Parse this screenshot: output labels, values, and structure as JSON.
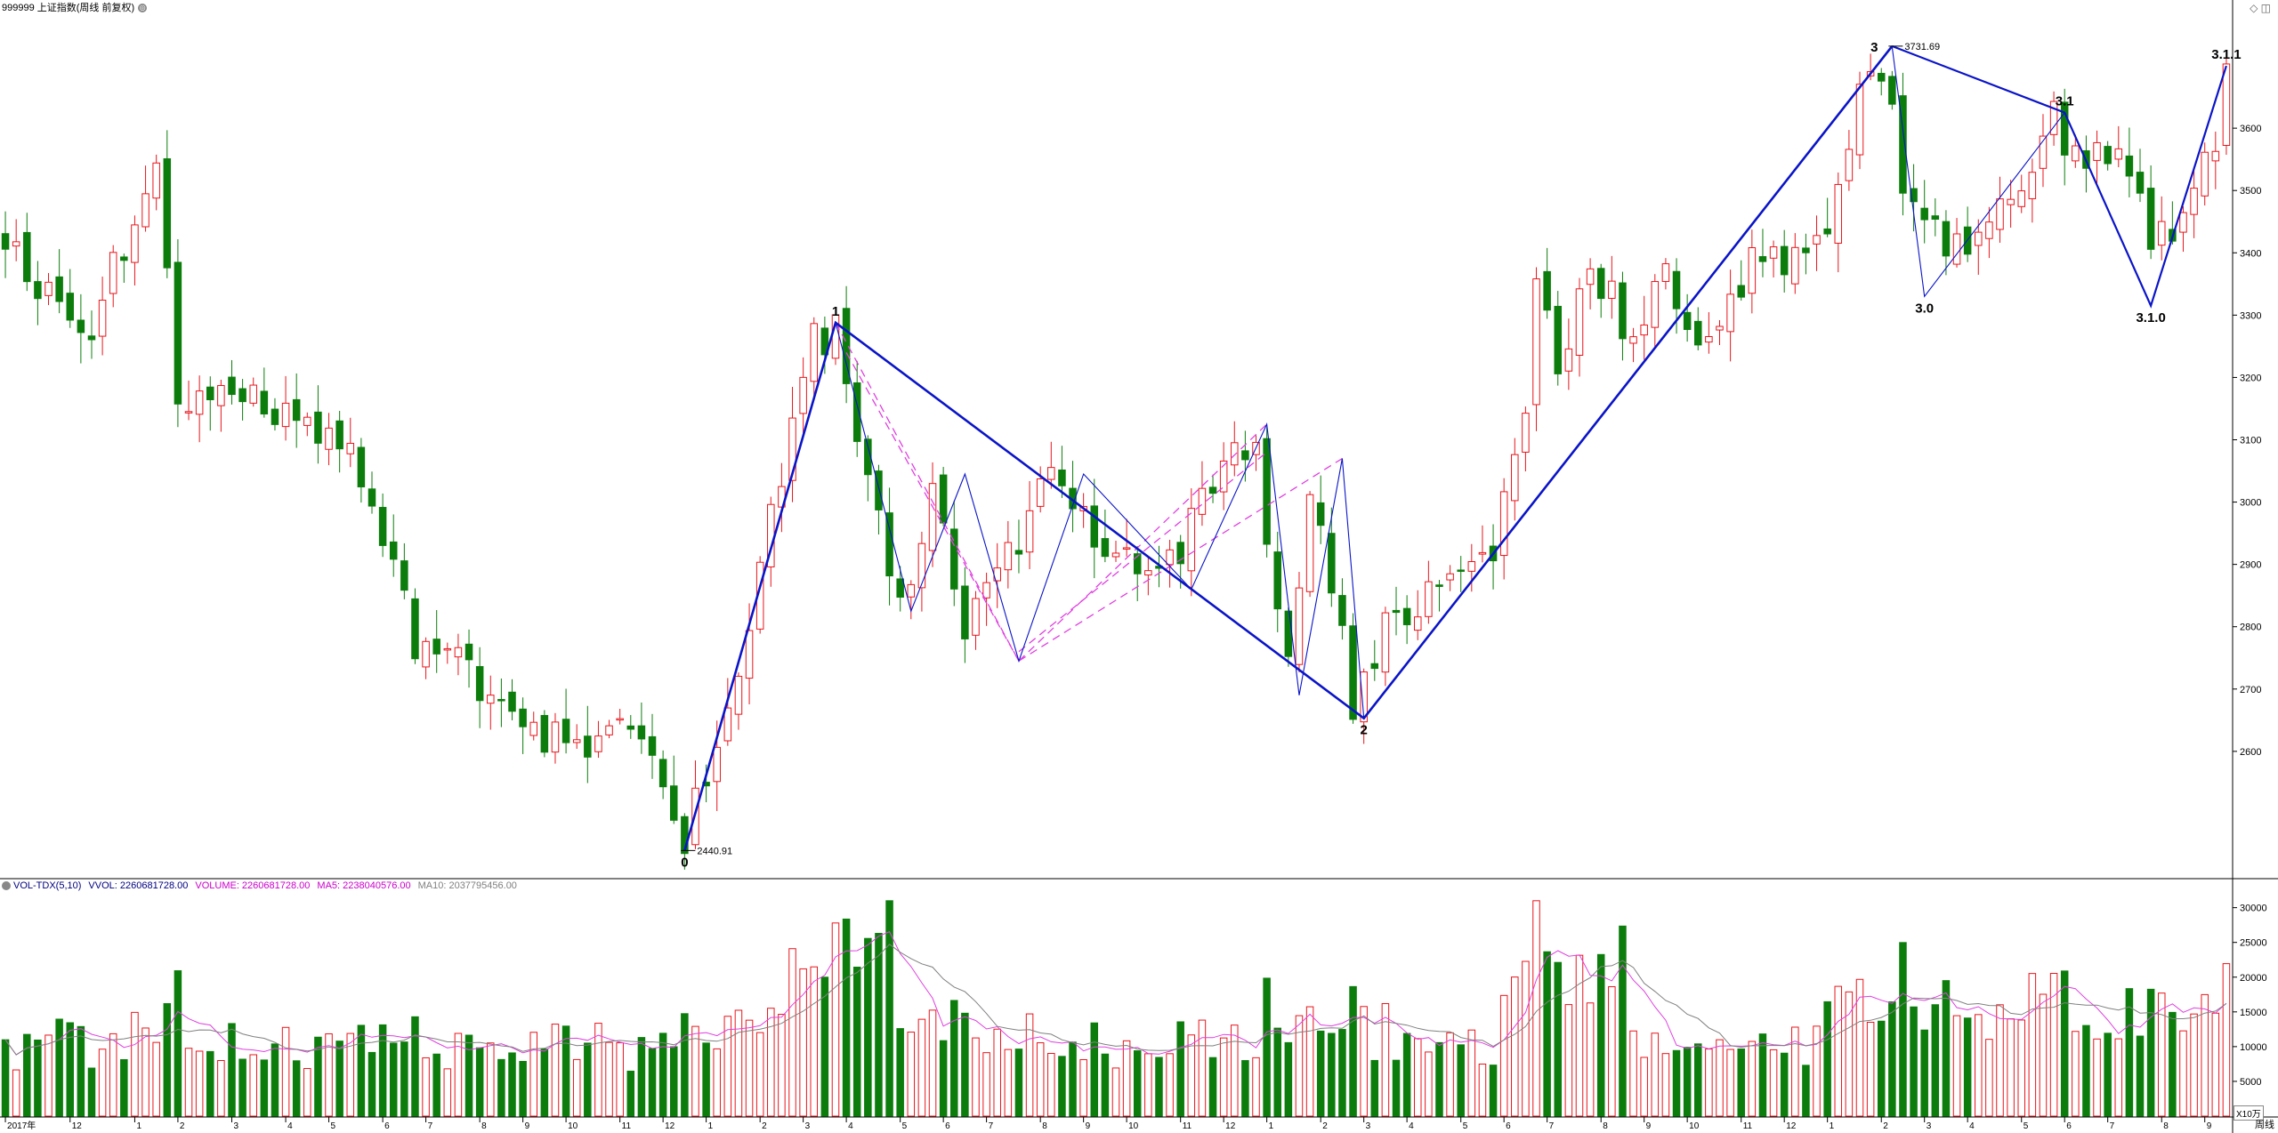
{
  "header": {
    "security": "999999 上证指数(周线 前复权)",
    "circle_glyph": "◎"
  },
  "vol_header": {
    "name": "VOL-TDX(5,10)",
    "vvol": "VVOL: 2260681728.00",
    "volume": "VOLUME: 2260681728.00",
    "ma5": "MA5: 2238040576.00",
    "ma10": "MA10: 2037795456.00"
  },
  "period_label": "周线",
  "unit_label": "X10万",
  "window_icons": "◇ ◫",
  "colors": {
    "up": "#e8161c",
    "down": "#0c7d0c",
    "wave": "#0a14c8",
    "fib": "#e040e0",
    "ma5": "#e040e0",
    "ma10": "#808080",
    "grid": "#000000"
  },
  "chart_data": {
    "type": "candlestick",
    "price_axis": {
      "min": 2400,
      "max": 3780,
      "ticks": [
        2600,
        2700,
        2800,
        2900,
        3000,
        3100,
        3200,
        3300,
        3400,
        3500,
        3600
      ]
    },
    "volume_axis": {
      "ticks": [
        5000,
        10000,
        15000,
        20000,
        25000,
        30000
      ],
      "unit": "X10万"
    },
    "time_labels": [
      {
        "bar": 0,
        "text": "2017年"
      },
      {
        "bar": 6,
        "text": "12"
      },
      {
        "bar": 12,
        "text": "1"
      },
      {
        "bar": 16,
        "text": "2"
      },
      {
        "bar": 21,
        "text": "3"
      },
      {
        "bar": 26,
        "text": "4"
      },
      {
        "bar": 30,
        "text": "5"
      },
      {
        "bar": 35,
        "text": "6"
      },
      {
        "bar": 39,
        "text": "7"
      },
      {
        "bar": 44,
        "text": "8"
      },
      {
        "bar": 48,
        "text": "9"
      },
      {
        "bar": 52,
        "text": "10"
      },
      {
        "bar": 57,
        "text": "11"
      },
      {
        "bar": 61,
        "text": "12"
      },
      {
        "bar": 65,
        "text": "1"
      },
      {
        "bar": 70,
        "text": "2"
      },
      {
        "bar": 74,
        "text": "3"
      },
      {
        "bar": 78,
        "text": "4"
      },
      {
        "bar": 83,
        "text": "5"
      },
      {
        "bar": 87,
        "text": "6"
      },
      {
        "bar": 91,
        "text": "7"
      },
      {
        "bar": 96,
        "text": "8"
      },
      {
        "bar": 100,
        "text": "9"
      },
      {
        "bar": 104,
        "text": "10"
      },
      {
        "bar": 109,
        "text": "11"
      },
      {
        "bar": 113,
        "text": "12"
      },
      {
        "bar": 117,
        "text": "1"
      },
      {
        "bar": 122,
        "text": "2"
      },
      {
        "bar": 126,
        "text": "3"
      },
      {
        "bar": 130,
        "text": "4"
      },
      {
        "bar": 135,
        "text": "5"
      },
      {
        "bar": 139,
        "text": "6"
      },
      {
        "bar": 143,
        "text": "7"
      },
      {
        "bar": 148,
        "text": "8"
      },
      {
        "bar": 152,
        "text": "9"
      },
      {
        "bar": 156,
        "text": "10"
      },
      {
        "bar": 161,
        "text": "11"
      },
      {
        "bar": 165,
        "text": "12"
      },
      {
        "bar": 169,
        "text": "1"
      },
      {
        "bar": 174,
        "text": "2"
      },
      {
        "bar": 178,
        "text": "3"
      },
      {
        "bar": 182,
        "text": "4"
      },
      {
        "bar": 187,
        "text": "5"
      },
      {
        "bar": 191,
        "text": "6"
      },
      {
        "bar": 195,
        "text": "7"
      },
      {
        "bar": 200,
        "text": "8"
      },
      {
        "bar": 204,
        "text": "9"
      }
    ],
    "anchors": [
      {
        "bar": 0,
        "close": 3410
      },
      {
        "bar": 8,
        "close": 3280
      },
      {
        "bar": 14,
        "close": 3560
      },
      {
        "bar": 16,
        "close": 3150
      },
      {
        "bar": 22,
        "close": 3190
      },
      {
        "bar": 32,
        "close": 3080
      },
      {
        "bar": 38,
        "close": 2780
      },
      {
        "bar": 46,
        "close": 2690
      },
      {
        "bar": 52,
        "close": 2600
      },
      {
        "bar": 56,
        "close": 2650
      },
      {
        "bar": 60,
        "close": 2580
      },
      {
        "bar": 63,
        "close": 2460
      },
      {
        "bar": 66,
        "close": 2600
      },
      {
        "bar": 69,
        "close": 2800
      },
      {
        "bar": 71,
        "close": 2990
      },
      {
        "bar": 75,
        "close": 3260
      },
      {
        "bar": 77,
        "close": 3280
      },
      {
        "bar": 79,
        "close": 3120
      },
      {
        "bar": 82,
        "close": 2880
      },
      {
        "bar": 84,
        "close": 2840
      },
      {
        "bar": 86,
        "close": 3030
      },
      {
        "bar": 89,
        "close": 2780
      },
      {
        "bar": 94,
        "close": 2940
      },
      {
        "bar": 97,
        "close": 3040
      },
      {
        "bar": 100,
        "close": 2960
      },
      {
        "bar": 104,
        "close": 2920
      },
      {
        "bar": 108,
        "close": 2900
      },
      {
        "bar": 111,
        "close": 3000
      },
      {
        "bar": 114,
        "close": 3100
      },
      {
        "bar": 116,
        "close": 3080
      },
      {
        "bar": 119,
        "close": 2720
      },
      {
        "bar": 121,
        "close": 3040
      },
      {
        "bar": 123,
        "close": 2870
      },
      {
        "bar": 125,
        "close": 2680
      },
      {
        "bar": 128,
        "close": 2800
      },
      {
        "bar": 133,
        "close": 2860
      },
      {
        "bar": 138,
        "close": 2920
      },
      {
        "bar": 141,
        "close": 3150
      },
      {
        "bar": 142,
        "close": 3360
      },
      {
        "bar": 144,
        "close": 3220
      },
      {
        "bar": 147,
        "close": 3380
      },
      {
        "bar": 149,
        "close": 3330
      },
      {
        "bar": 151,
        "close": 3240
      },
      {
        "bar": 154,
        "close": 3360
      },
      {
        "bar": 157,
        "close": 3260
      },
      {
        "bar": 160,
        "close": 3300
      },
      {
        "bar": 163,
        "close": 3420
      },
      {
        "bar": 166,
        "close": 3380
      },
      {
        "bar": 169,
        "close": 3460
      },
      {
        "bar": 172,
        "close": 3640
      },
      {
        "bar": 174,
        "close": 3700
      },
      {
        "bar": 176,
        "close": 3520
      },
      {
        "bar": 178,
        "close": 3460
      },
      {
        "bar": 180,
        "close": 3400
      },
      {
        "bar": 183,
        "close": 3420
      },
      {
        "bar": 186,
        "close": 3480
      },
      {
        "bar": 188,
        "close": 3560
      },
      {
        "bar": 190,
        "close": 3610
      },
      {
        "bar": 192,
        "close": 3540
      },
      {
        "bar": 195,
        "close": 3560
      },
      {
        "bar": 197,
        "close": 3540
      },
      {
        "bar": 199,
        "close": 3400
      },
      {
        "bar": 201,
        "close": 3440
      },
      {
        "bar": 203,
        "close": 3520
      },
      {
        "bar": 205,
        "close": 3580
      },
      {
        "bar": 206,
        "close": 3690
      }
    ],
    "wave_points": [
      {
        "bar": 63,
        "price": 2440.91,
        "label": "0",
        "pos": "below"
      },
      {
        "bar": 77,
        "price": 3288,
        "label": "1",
        "pos": "above"
      },
      {
        "bar": 126,
        "price": 2653,
        "label": "2",
        "pos": "below"
      },
      {
        "bar": 175,
        "price": 3731.69,
        "label": "3",
        "pos": "above-left"
      },
      {
        "bar": 178,
        "price": 3330,
        "label": "3.0",
        "pos": "below"
      },
      {
        "bar": 191,
        "price": 3625,
        "label": "3.1",
        "pos": "above"
      },
      {
        "bar": 199,
        "price": 3315,
        "label": "3.1.0",
        "pos": "below"
      },
      {
        "bar": 206,
        "price": 3700,
        "label": "3.1.1",
        "pos": "above"
      }
    ],
    "price_annotations": [
      {
        "bar": 63,
        "price": 2440.91,
        "text": "2440.91"
      },
      {
        "bar": 175,
        "price": 3731.69,
        "text": "3731.69"
      }
    ],
    "sub_waves": [
      [
        [
          77,
          3288
        ],
        [
          84,
          2825
        ],
        [
          89,
          3045
        ],
        [
          94,
          2745
        ],
        [
          100,
          3045
        ],
        [
          110,
          2860
        ],
        [
          117,
          3125
        ],
        [
          120,
          2690
        ],
        [
          124,
          3070
        ],
        [
          126,
          2653
        ]
      ],
      [
        [
          175,
          3731
        ],
        [
          178,
          3330
        ],
        [
          191,
          3625
        ],
        [
          199,
          3315
        ]
      ]
    ],
    "fib_lines": [
      [
        [
          77,
          3288
        ],
        [
          94,
          2745
        ]
      ],
      [
        [
          78,
          3240
        ],
        [
          94,
          2745
        ]
      ],
      [
        [
          94,
          2745
        ],
        [
          117,
          3125
        ]
      ],
      [
        [
          94,
          2745
        ],
        [
          124,
          3070
        ]
      ],
      [
        [
          94,
          2760
        ],
        [
          117,
          3080
        ]
      ]
    ]
  }
}
